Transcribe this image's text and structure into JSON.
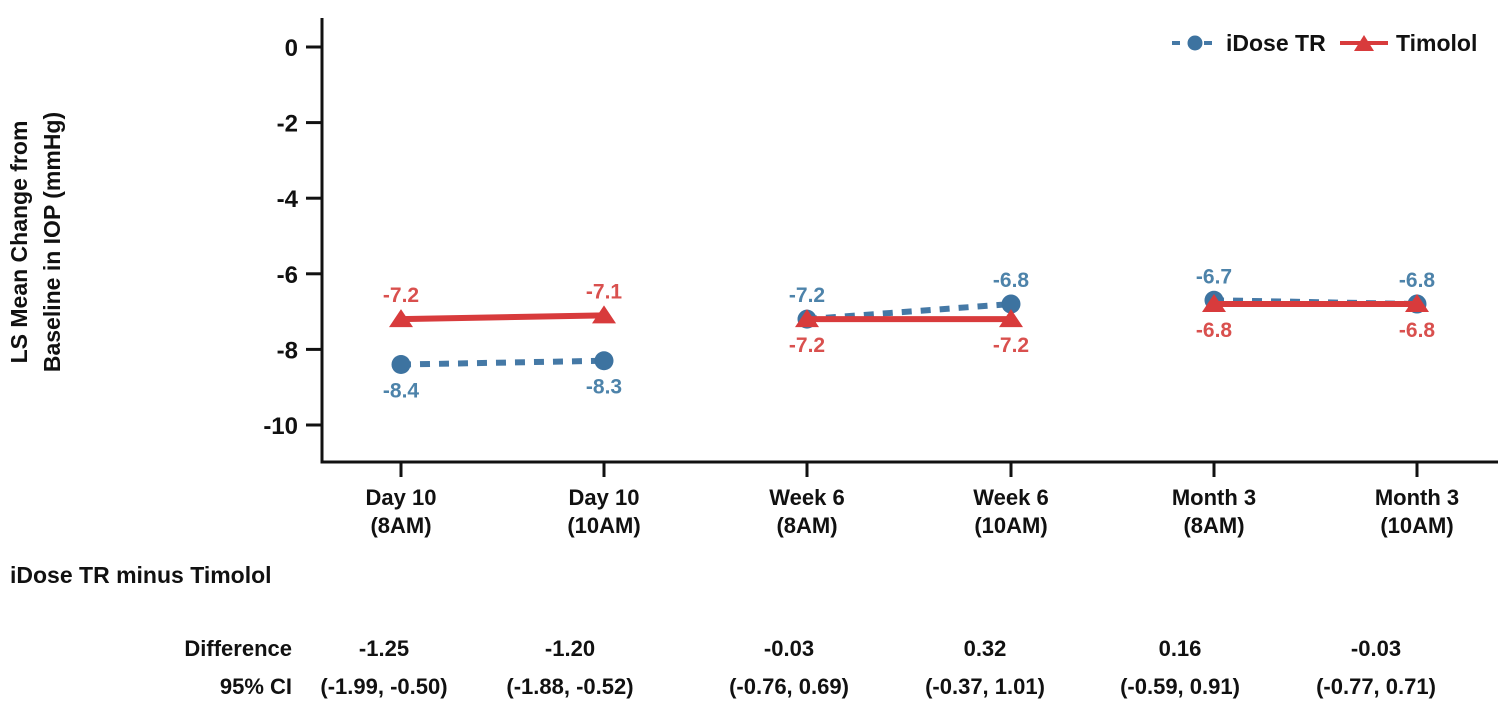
{
  "colors": {
    "idose_line": "#4579a6",
    "idose_marker": "#3d73a0",
    "idose_label": "#4d83aa",
    "timolol_line": "#d83b3c",
    "timolol_marker": "#d83b3c",
    "timolol_label": "#d9504e",
    "axis": "#111111",
    "background": "#ffffff"
  },
  "chart_data": {
    "type": "line",
    "title": "",
    "ylabel_lines": [
      "LS Mean Change from",
      "Baseline in IOP (mmHg)"
    ],
    "ylim": [
      -11,
      0.8
    ],
    "yticks": [
      "0",
      "-2",
      "-4",
      "-6",
      "-8",
      "-10"
    ],
    "ytick_values": [
      0,
      -2,
      -4,
      -6,
      -8,
      -10
    ],
    "grid": false,
    "legend_position": "top-right",
    "categories": [
      {
        "line1": "Day 10",
        "line2": "(8AM)"
      },
      {
        "line1": "Day 10",
        "line2": "(10AM)"
      },
      {
        "line1": "Week 6",
        "line2": "(8AM)"
      },
      {
        "line1": "Week 6",
        "line2": "(10AM)"
      },
      {
        "line1": "Month 3",
        "line2": "(8AM)"
      },
      {
        "line1": "Month 3",
        "line2": "(10AM)"
      }
    ],
    "segments": [
      [
        0,
        1
      ],
      [
        2,
        3
      ],
      [
        4,
        5
      ]
    ],
    "series": [
      {
        "name": "iDose TR",
        "marker": "circle",
        "line_style": "dashed",
        "values": [
          -8.4,
          -8.3,
          -7.2,
          -6.8,
          -6.7,
          -6.8
        ],
        "point_labels": [
          "-8.4",
          "-8.3",
          "-7.2",
          "-6.8",
          "-6.7",
          "-6.8"
        ],
        "label_positions": [
          "below",
          "below",
          "above",
          "above",
          "above",
          "above"
        ]
      },
      {
        "name": "Timolol",
        "marker": "triangle",
        "line_style": "solid",
        "values": [
          -7.2,
          -7.1,
          -7.2,
          -7.2,
          -6.8,
          -6.8
        ],
        "point_labels": [
          "-7.2",
          "-7.1",
          "-7.2",
          "-7.2",
          "-6.8",
          "-6.8"
        ],
        "label_positions": [
          "above",
          "above",
          "below",
          "below",
          "below",
          "below"
        ]
      }
    ]
  },
  "table": {
    "group_label": "iDose TR minus Timolol",
    "rows": [
      {
        "label": "Difference",
        "values": [
          "-1.25",
          "-1.20",
          "-0.03",
          "0.32",
          "0.16",
          "-0.03"
        ]
      },
      {
        "label": "95% CI",
        "values": [
          "(-1.99, -0.50)",
          "(-1.88, -0.52)",
          "(-0.76, 0.69)",
          "(-0.37, 1.01)",
          "(-0.59, 0.91)",
          "(-0.77, 0.71)"
        ]
      }
    ]
  }
}
